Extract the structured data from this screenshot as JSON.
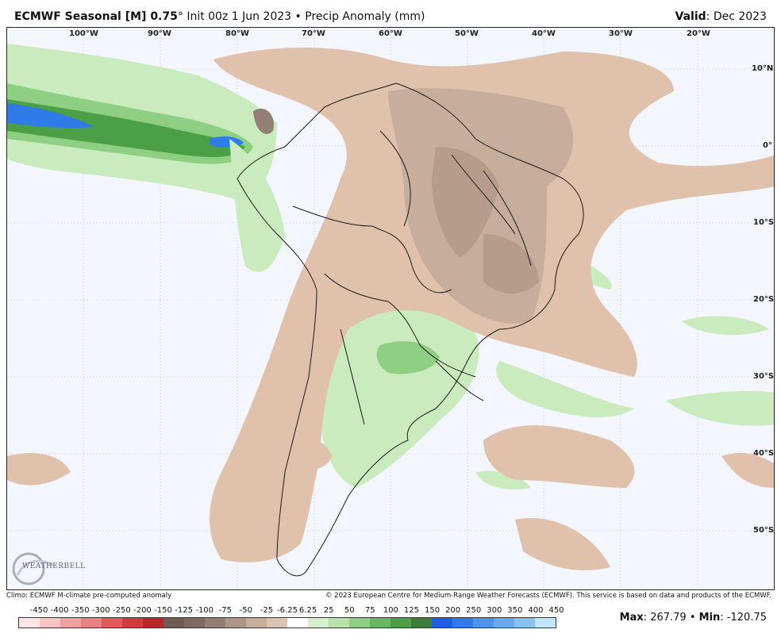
{
  "header": {
    "model": "ECMWF Seasonal [M] 0.75",
    "degree": "°",
    "init": "Init 00z 1 Jun 2023",
    "bullet": "•",
    "product": "Precip Anomaly (mm)",
    "valid_label": "Valid",
    "valid_value": ": Dec 2023"
  },
  "lon_labels": [
    "100°W",
    "90°W",
    "80°W",
    "70°W",
    "60°W",
    "50°W",
    "40°W",
    "30°W",
    "20°W"
  ],
  "lat_labels": [
    "10°N",
    "0°",
    "10°S",
    "20°S",
    "30°S",
    "40°S",
    "50°S"
  ],
  "credits": {
    "left": "Climo: ECMWF M-climate pre-computed anomaly",
    "right": "© 2023 European Centre for Medium-Range Weather Forecasts (ECMWF). This service is based on data and products of the ECMWF."
  },
  "legend": {
    "ticks": [
      "-450",
      "-400",
      "-350",
      "-300",
      "-250",
      "-200",
      "-150",
      "-125",
      "-100",
      "-75",
      "-50",
      "-25",
      "-6.25",
      "6.25",
      "25",
      "50",
      "75",
      "100",
      "125",
      "150",
      "200",
      "250",
      "300",
      "350",
      "400",
      "450"
    ],
    "colors": [
      "#fde6e6",
      "#f9c4c4",
      "#f3a0a0",
      "#ec7f7f",
      "#e05a5a",
      "#cf3e3e",
      "#b82828",
      "#6e5a52",
      "#7e6a60",
      "#938074",
      "#ad9686",
      "#c6ad9c",
      "#dcc2b0",
      "#ffffff",
      "#d6efcd",
      "#b7e3ab",
      "#8fcf84",
      "#67b95f",
      "#4a9f47",
      "#3b7d3b",
      "#1e5ee0",
      "#2f7be8",
      "#4b95ee",
      "#66aaf2",
      "#86c2f6",
      "#bfe9fb"
    ]
  },
  "stats": {
    "max_label": "Max",
    "max_value": ": 267.79",
    "sep": " • ",
    "min_label": "Min",
    "min_value": ": -120.75"
  },
  "logo": {
    "text": "WEATHERBELL"
  }
}
